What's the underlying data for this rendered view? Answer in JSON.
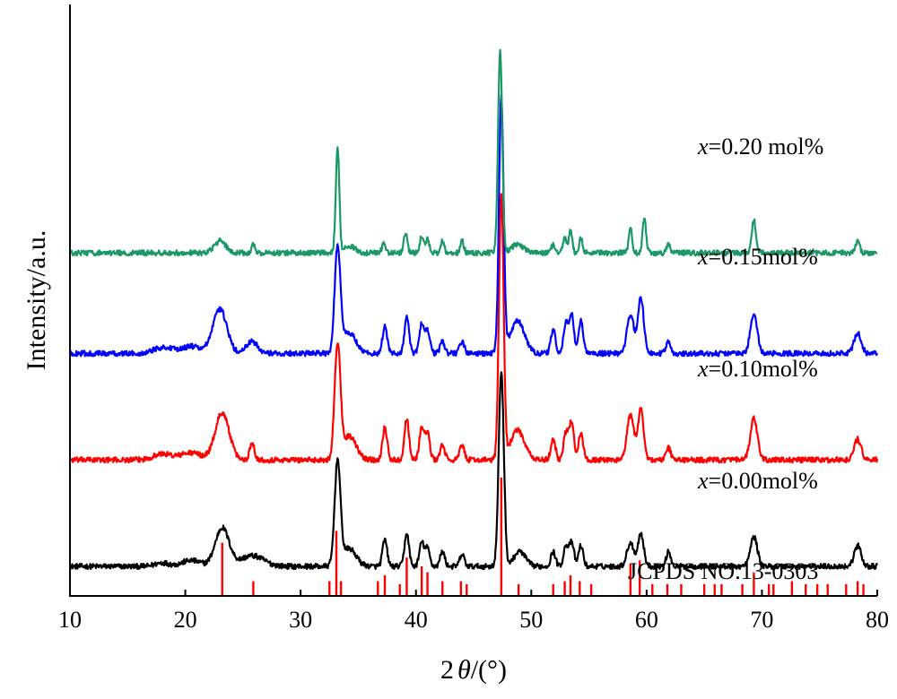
{
  "chart_data": {
    "type": "line",
    "xlabel_prefix": "2",
    "xlabel_symbol": "θ",
    "xlabel_suffix": "/(°)",
    "ylabel": "Intensity/a.u.",
    "xlim": [
      10,
      80
    ],
    "xticks": [
      10,
      20,
      30,
      40,
      50,
      60,
      70,
      80
    ],
    "grid": false,
    "series": [
      {
        "label_var": "x",
        "label_rest": "=0.00mol%",
        "color": "#000000",
        "baseline": 0.05,
        "peaks": [
          [
            18.0,
            0.006,
            0.6
          ],
          [
            20.5,
            0.01,
            0.8
          ],
          [
            23.2,
            0.065,
            0.6
          ],
          [
            25.8,
            0.018,
            1.0
          ],
          [
            33.2,
            0.175,
            0.25
          ],
          [
            34.2,
            0.03,
            0.6
          ],
          [
            37.3,
            0.045,
            0.2
          ],
          [
            39.2,
            0.055,
            0.2
          ],
          [
            40.5,
            0.04,
            0.2
          ],
          [
            41.0,
            0.03,
            0.2
          ],
          [
            42.3,
            0.025,
            0.2
          ],
          [
            44.0,
            0.02,
            0.2
          ],
          [
            47.4,
            0.33,
            0.22
          ],
          [
            49.0,
            0.025,
            0.5
          ],
          [
            51.9,
            0.025,
            0.2
          ],
          [
            53.0,
            0.035,
            0.2
          ],
          [
            53.5,
            0.04,
            0.2
          ],
          [
            54.3,
            0.035,
            0.2
          ],
          [
            58.6,
            0.04,
            0.3
          ],
          [
            59.5,
            0.055,
            0.25
          ],
          [
            61.9,
            0.025,
            0.2
          ],
          [
            69.3,
            0.05,
            0.3
          ],
          [
            78.3,
            0.035,
            0.3
          ]
        ]
      },
      {
        "label_var": "x",
        "label_rest": "=0.10mol%",
        "color": "#ff0000",
        "baseline": 0.23,
        "peaks": [
          [
            18.0,
            0.01,
            0.8
          ],
          [
            20.5,
            0.012,
            0.9
          ],
          [
            23.2,
            0.08,
            0.6
          ],
          [
            25.8,
            0.03,
            0.2
          ],
          [
            33.2,
            0.19,
            0.25
          ],
          [
            34.2,
            0.04,
            0.6
          ],
          [
            37.3,
            0.055,
            0.2
          ],
          [
            39.2,
            0.07,
            0.2
          ],
          [
            40.5,
            0.055,
            0.2
          ],
          [
            41.0,
            0.045,
            0.2
          ],
          [
            42.3,
            0.025,
            0.2
          ],
          [
            44.0,
            0.025,
            0.2
          ],
          [
            47.4,
            0.45,
            0.2
          ],
          [
            48.8,
            0.05,
            0.6
          ],
          [
            51.9,
            0.035,
            0.2
          ],
          [
            53.0,
            0.045,
            0.2
          ],
          [
            53.5,
            0.065,
            0.2
          ],
          [
            54.3,
            0.045,
            0.2
          ],
          [
            58.6,
            0.075,
            0.3
          ],
          [
            59.5,
            0.085,
            0.25
          ],
          [
            61.9,
            0.02,
            0.2
          ],
          [
            69.3,
            0.07,
            0.3
          ],
          [
            78.3,
            0.035,
            0.3
          ]
        ]
      },
      {
        "label_var": "x",
        "label_rest": "=0.15mol%",
        "color": "#0000ff",
        "baseline": 0.41,
        "peaks": [
          [
            18.0,
            0.01,
            0.8
          ],
          [
            20.5,
            0.012,
            0.9
          ],
          [
            23.0,
            0.075,
            0.6
          ],
          [
            25.8,
            0.02,
            0.5
          ],
          [
            33.2,
            0.175,
            0.25
          ],
          [
            34.2,
            0.035,
            0.6
          ],
          [
            37.3,
            0.045,
            0.2
          ],
          [
            39.2,
            0.06,
            0.2
          ],
          [
            40.5,
            0.05,
            0.2
          ],
          [
            41.0,
            0.04,
            0.2
          ],
          [
            42.3,
            0.02,
            0.2
          ],
          [
            44.0,
            0.02,
            0.2
          ],
          [
            47.4,
            0.43,
            0.2
          ],
          [
            48.8,
            0.055,
            0.6
          ],
          [
            51.9,
            0.04,
            0.2
          ],
          [
            53.0,
            0.05,
            0.2
          ],
          [
            53.5,
            0.065,
            0.2
          ],
          [
            54.3,
            0.055,
            0.2
          ],
          [
            58.6,
            0.065,
            0.3
          ],
          [
            59.5,
            0.095,
            0.25
          ],
          [
            61.9,
            0.02,
            0.2
          ],
          [
            69.3,
            0.065,
            0.3
          ],
          [
            78.3,
            0.035,
            0.3
          ]
        ]
      },
      {
        "label_var": "x",
        "label_rest": "=0.20 mol%",
        "color": "#1a9966",
        "baseline": 0.58,
        "peaks": [
          [
            23.0,
            0.02,
            0.5
          ],
          [
            25.9,
            0.015,
            0.15
          ],
          [
            33.2,
            0.18,
            0.15
          ],
          [
            34.2,
            0.012,
            0.5
          ],
          [
            37.2,
            0.018,
            0.15
          ],
          [
            39.1,
            0.035,
            0.15
          ],
          [
            40.5,
            0.03,
            0.15
          ],
          [
            41.0,
            0.025,
            0.15
          ],
          [
            42.3,
            0.02,
            0.15
          ],
          [
            44.0,
            0.02,
            0.15
          ],
          [
            47.3,
            0.34,
            0.18
          ],
          [
            48.8,
            0.015,
            0.5
          ],
          [
            51.9,
            0.015,
            0.15
          ],
          [
            52.9,
            0.025,
            0.15
          ],
          [
            53.4,
            0.04,
            0.15
          ],
          [
            54.3,
            0.025,
            0.15
          ],
          [
            58.6,
            0.04,
            0.15
          ],
          [
            59.8,
            0.06,
            0.15
          ],
          [
            61.9,
            0.015,
            0.15
          ],
          [
            69.3,
            0.055,
            0.18
          ],
          [
            78.3,
            0.02,
            0.18
          ]
        ]
      }
    ],
    "reference": {
      "label": "JCPDS NO.13-0303",
      "color": "#ff0000",
      "lines": [
        [
          23.2,
          0.09
        ],
        [
          25.9,
          0.025
        ],
        [
          32.5,
          0.025
        ],
        [
          33.1,
          0.11
        ],
        [
          33.5,
          0.025
        ],
        [
          36.7,
          0.025
        ],
        [
          37.3,
          0.035
        ],
        [
          38.6,
          0.02
        ],
        [
          39.2,
          0.065
        ],
        [
          40.5,
          0.05
        ],
        [
          41.0,
          0.04
        ],
        [
          42.3,
          0.025
        ],
        [
          43.9,
          0.025
        ],
        [
          44.4,
          0.02
        ],
        [
          47.4,
          0.2
        ],
        [
          48.9,
          0.02
        ],
        [
          51.9,
          0.02
        ],
        [
          52.9,
          0.025
        ],
        [
          53.4,
          0.035
        ],
        [
          54.2,
          0.025
        ],
        [
          55.2,
          0.02
        ],
        [
          58.6,
          0.055
        ],
        [
          59.4,
          0.06
        ],
        [
          60.5,
          0.02
        ],
        [
          61.8,
          0.02
        ],
        [
          63.0,
          0.02
        ],
        [
          65.0,
          0.02
        ],
        [
          65.9,
          0.02
        ],
        [
          66.5,
          0.02
        ],
        [
          68.3,
          0.02
        ],
        [
          69.3,
          0.04
        ],
        [
          70.6,
          0.02
        ],
        [
          71.0,
          0.02
        ],
        [
          72.6,
          0.025
        ],
        [
          73.8,
          0.02
        ],
        [
          74.8,
          0.02
        ],
        [
          75.7,
          0.02
        ],
        [
          77.3,
          0.02
        ],
        [
          78.3,
          0.025
        ],
        [
          78.8,
          0.02
        ]
      ]
    }
  }
}
